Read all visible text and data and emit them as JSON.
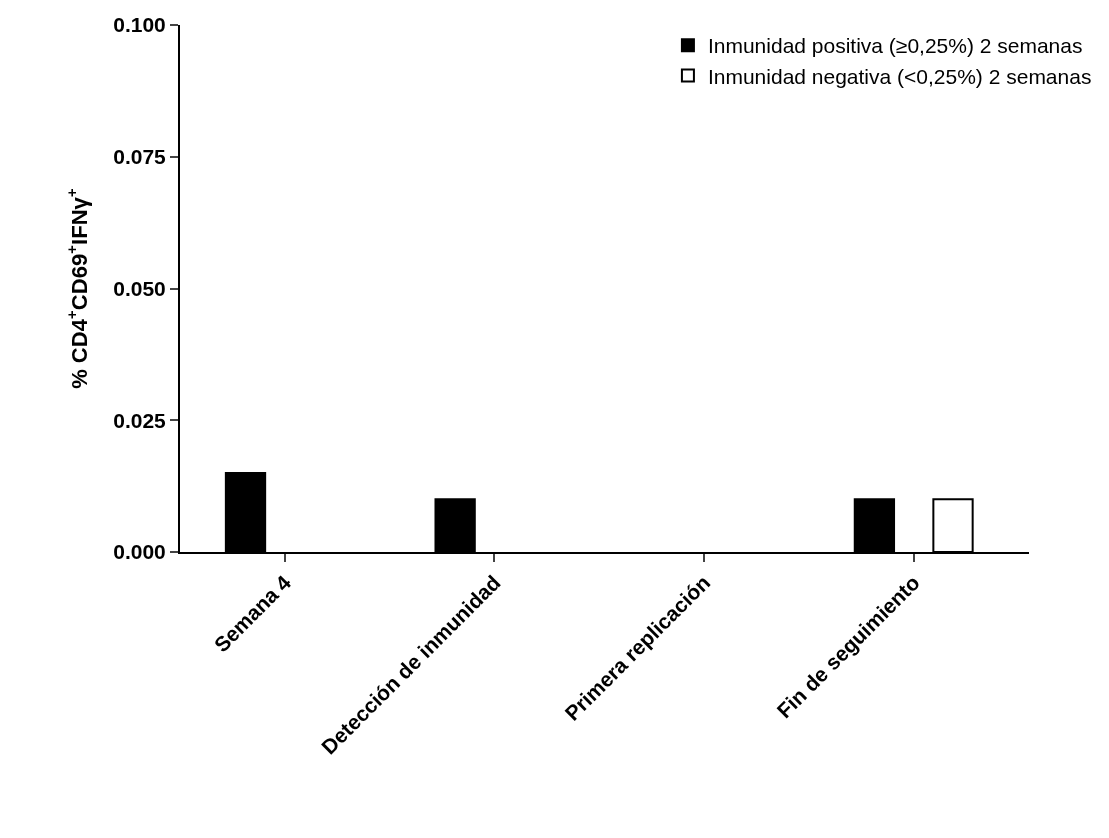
{
  "chart_data": {
    "type": "bar",
    "ylabel": "% CD4$^{+}$CD69$^{+}$IFNγ$^{+}$",
    "categories": [
      "Semana 4",
      "Detección de inmunidad",
      "Primera replicación",
      "Fin de seguimiento"
    ],
    "series": [
      {
        "name": "Inmunidad positiva (≥0,25%) 2 semanas",
        "color": "#000000",
        "values": [
          0.015,
          0.01,
          null,
          0.01
        ]
      },
      {
        "name": "Inmunidad negativa (<0,25%) 2 semanas",
        "color": "#ffffff",
        "values": [
          null,
          null,
          null,
          0.01
        ]
      }
    ],
    "ylim": [
      0,
      0.1
    ],
    "yticks": [
      {
        "value": 0,
        "label": "0.000"
      },
      {
        "value": 0.025,
        "label": "0.025"
      },
      {
        "value": 0.05,
        "label": "0.050"
      },
      {
        "value": 0.075,
        "label": "0.075"
      },
      {
        "value": 0.1,
        "label": "0.100"
      }
    ],
    "grid": false,
    "legend": "top right"
  }
}
